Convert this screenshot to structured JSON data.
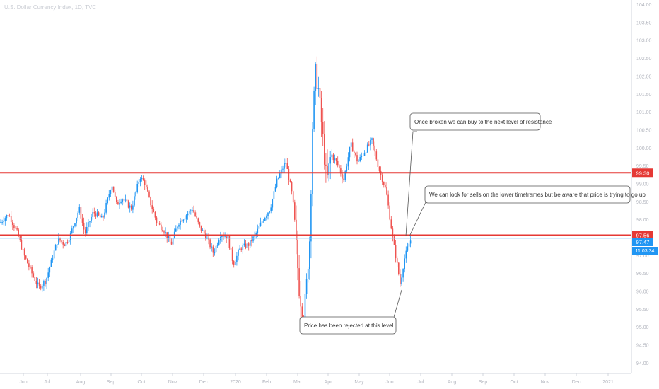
{
  "header": {
    "title": "U.S. Dollar Currency Index, 1D, TVC"
  },
  "chart_data": {
    "type": "candlestick",
    "ylim": [
      93.8,
      104.1
    ],
    "y_ticks": [
      "104.00",
      "103.50",
      "103.00",
      "102.50",
      "102.00",
      "101.50",
      "101.00",
      "100.50",
      "100.00",
      "99.50",
      "99.00",
      "98.50",
      "98.00",
      "97.50",
      "97.00",
      "96.50",
      "96.00",
      "95.50",
      "95.00",
      "94.50",
      "94.00"
    ],
    "x_ticks": [
      "Jun",
      "Jul",
      "Aug",
      "Sep",
      "Oct",
      "Nov",
      "Dec",
      "2020",
      "Feb",
      "Mar",
      "Apr",
      "May",
      "Jun",
      "Jul",
      "Aug",
      "Sep",
      "Oct",
      "Nov",
      "Dec",
      "2021"
    ],
    "date_range": [
      "2019-05-16",
      "2020-06-12"
    ],
    "close_path": [
      [
        0,
        97.9
      ],
      [
        12,
        98.15
      ],
      [
        25,
        97.6
      ],
      [
        34,
        97.0
      ],
      [
        45,
        96.5
      ],
      [
        55,
        96.1
      ],
      [
        65,
        96.3
      ],
      [
        75,
        97.0
      ],
      [
        82,
        97.45
      ],
      [
        92,
        97.3
      ],
      [
        100,
        97.6
      ],
      [
        112,
        98.3
      ],
      [
        120,
        97.6
      ],
      [
        132,
        98.2
      ],
      [
        145,
        98.0
      ],
      [
        158,
        99.0
      ],
      [
        165,
        98.4
      ],
      [
        172,
        98.6
      ],
      [
        186,
        98.3
      ],
      [
        198,
        99.2
      ],
      [
        205,
        99.0
      ],
      [
        212,
        98.5
      ],
      [
        222,
        97.9
      ],
      [
        232,
        97.7
      ],
      [
        242,
        97.3
      ],
      [
        252,
        97.9
      ],
      [
        262,
        98.1
      ],
      [
        272,
        98.3
      ],
      [
        282,
        97.8
      ],
      [
        292,
        97.5
      ],
      [
        302,
        97.05
      ],
      [
        312,
        97.6
      ],
      [
        322,
        97.5
      ],
      [
        330,
        96.75
      ],
      [
        340,
        97.2
      ],
      [
        352,
        97.3
      ],
      [
        362,
        97.6
      ],
      [
        372,
        98.0
      ],
      [
        382,
        98.3
      ],
      [
        392,
        99.1
      ],
      [
        404,
        99.6
      ],
      [
        414,
        98.6
      ],
      [
        423,
        96.1
      ],
      [
        429,
        95.2
      ],
      [
        433,
        96.0
      ],
      [
        438,
        97.5
      ],
      [
        442,
        100.6
      ],
      [
        446,
        102.1
      ],
      [
        450,
        101.7
      ],
      [
        456,
        100.4
      ],
      [
        462,
        99.0
      ],
      [
        468,
        99.8
      ],
      [
        476,
        99.6
      ],
      [
        486,
        99.1
      ],
      [
        496,
        100.1
      ],
      [
        506,
        99.6
      ],
      [
        516,
        99.9
      ],
      [
        526,
        100.2
      ],
      [
        536,
        99.4
      ],
      [
        546,
        98.8
      ],
      [
        556,
        97.4
      ],
      [
        562,
        96.7
      ],
      [
        566,
        96.2
      ],
      [
        572,
        96.9
      ],
      [
        578,
        97.3
      ],
      [
        582,
        97.47
      ]
    ],
    "levels": [
      {
        "value": 99.3,
        "label": "99.30",
        "color": "#e53935"
      },
      {
        "value": 97.56,
        "label": "97.56",
        "color": "#e53935"
      }
    ],
    "current_price": {
      "value": 97.47,
      "label": "97.47",
      "color": "#2196f3"
    },
    "countdown": {
      "label": "11:03:34",
      "color": "#2196f3"
    },
    "colors": {
      "up": "#2196f3",
      "down": "#ef5350"
    }
  },
  "annotations": [
    {
      "text": "Once broken we can buy to the next level of resistance"
    },
    {
      "text": "We can look for sells on the lower timeframes but be aware that price is trying to go up"
    },
    {
      "text": "Price has been rejected at this level"
    }
  ]
}
